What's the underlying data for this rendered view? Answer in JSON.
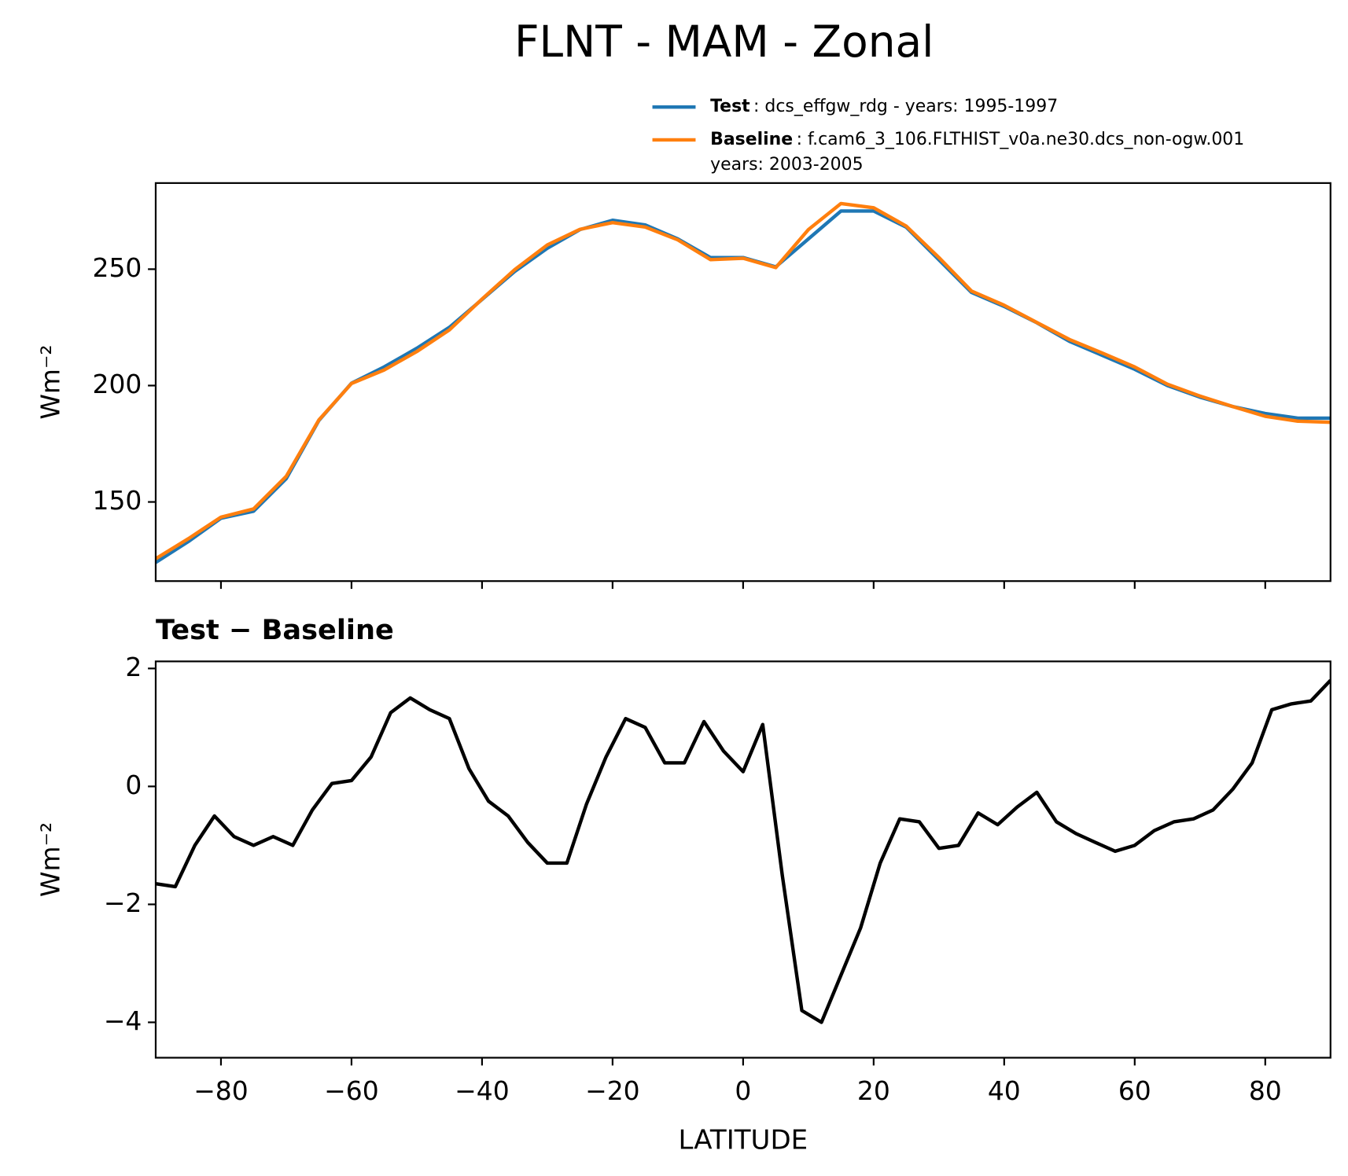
{
  "chart_data": [
    {
      "type": "line",
      "title": "FLNT - MAM - Zonal",
      "ylabel": "Wm⁻²",
      "x": [
        -90,
        -85,
        -80,
        -75,
        -70,
        -65,
        -60,
        -55,
        -50,
        -45,
        -40,
        -35,
        -30,
        -25,
        -20,
        -15,
        -10,
        -5,
        0,
        5,
        10,
        15,
        20,
        25,
        30,
        35,
        40,
        45,
        50,
        55,
        60,
        65,
        70,
        75,
        80,
        85,
        90
      ],
      "series": [
        {
          "name": "Test",
          "description": [
            ": dcs_effgw_rdg - years: 1995-1997"
          ],
          "color": "#1f77b4",
          "values": [
            124,
            133,
            143,
            146,
            160,
            185,
            201,
            208,
            216,
            225,
            237,
            249,
            259,
            267,
            271,
            269,
            263,
            255,
            255,
            251,
            263,
            275,
            275,
            268,
            254,
            240,
            234,
            227,
            219,
            213,
            207,
            200,
            195,
            191,
            188,
            186,
            186
          ]
        },
        {
          "name": "Baseline",
          "description": [
            ": f.cam6_3_106.FLTHIST_v0a.ne30.dcs_non-ogw.001",
            "years: 2003-2005"
          ],
          "color": "#ff7f0e",
          "values": [
            125.6,
            134.2,
            143.5,
            147,
            161,
            185.2,
            200.9,
            206.7,
            214.6,
            223.9,
            237.2,
            249.8,
            260.4,
            267.1,
            270,
            268.1,
            262.6,
            254.1,
            254.7,
            250.7,
            267,
            278.2,
            276.4,
            268.5,
            255,
            240.6,
            234.5,
            227.1,
            219.8,
            214,
            208,
            200.6,
            195.5,
            191,
            186.8,
            184.7,
            184.2
          ]
        }
      ],
      "xlim": [
        -90,
        90
      ],
      "xticks": [
        -80,
        -60,
        -40,
        -20,
        0,
        20,
        40,
        60,
        80
      ],
      "ylim": [
        116,
        287
      ],
      "yticks": [
        150,
        200,
        250
      ]
    },
    {
      "type": "line",
      "title": "Test − Baseline",
      "ylabel": "Wm⁻²",
      "xlabel": "LATITUDE",
      "x": [
        -90,
        -87,
        -84,
        -81,
        -78,
        -75,
        -72,
        -69,
        -66,
        -63,
        -60,
        -57,
        -54,
        -51,
        -48,
        -45,
        -42,
        -39,
        -36,
        -33,
        -30,
        -27,
        -24,
        -21,
        -18,
        -15,
        -12,
        -9,
        -6,
        -3,
        0,
        3,
        6,
        9,
        12,
        15,
        18,
        21,
        24,
        27,
        30,
        33,
        36,
        39,
        42,
        45,
        48,
        51,
        54,
        57,
        60,
        63,
        66,
        69,
        72,
        75,
        78,
        81,
        84,
        87,
        90
      ],
      "series": [
        {
          "color": "#000000",
          "values": [
            -1.65,
            -1.7,
            -1.0,
            -0.5,
            -0.85,
            -1.0,
            -0.85,
            -1.0,
            -0.4,
            0.05,
            0.1,
            0.5,
            1.25,
            1.5,
            1.3,
            1.15,
            0.3,
            -0.25,
            -0.5,
            -0.95,
            -1.3,
            -1.3,
            -0.3,
            0.5,
            1.15,
            1.0,
            0.4,
            0.4,
            1.1,
            0.6,
            0.25,
            1.05,
            -1.5,
            -3.8,
            -4.0,
            -3.2,
            -2.4,
            -1.3,
            -0.55,
            -0.6,
            -1.05,
            -1.0,
            -0.45,
            -0.65,
            -0.35,
            -0.1,
            -0.6,
            -0.8,
            -0.95,
            -1.1,
            -1.0,
            -0.75,
            -0.6,
            -0.55,
            -0.4,
            -0.05,
            0.4,
            1.3,
            1.4,
            1.45,
            1.8
          ]
        }
      ],
      "xlim": [
        -90,
        90
      ],
      "xticks": [
        {
          "value": -80,
          "label": "−80"
        },
        {
          "value": -60,
          "label": "−60"
        },
        {
          "value": -40,
          "label": "−40"
        },
        {
          "value": -20,
          "label": "−20"
        },
        0,
        20,
        40,
        60,
        80
      ],
      "ylim": [
        -4.6,
        2.12
      ],
      "yticks": [
        {
          "value": -4,
          "label": "−4"
        },
        {
          "value": -2,
          "label": "−2"
        },
        0,
        2
      ]
    }
  ]
}
